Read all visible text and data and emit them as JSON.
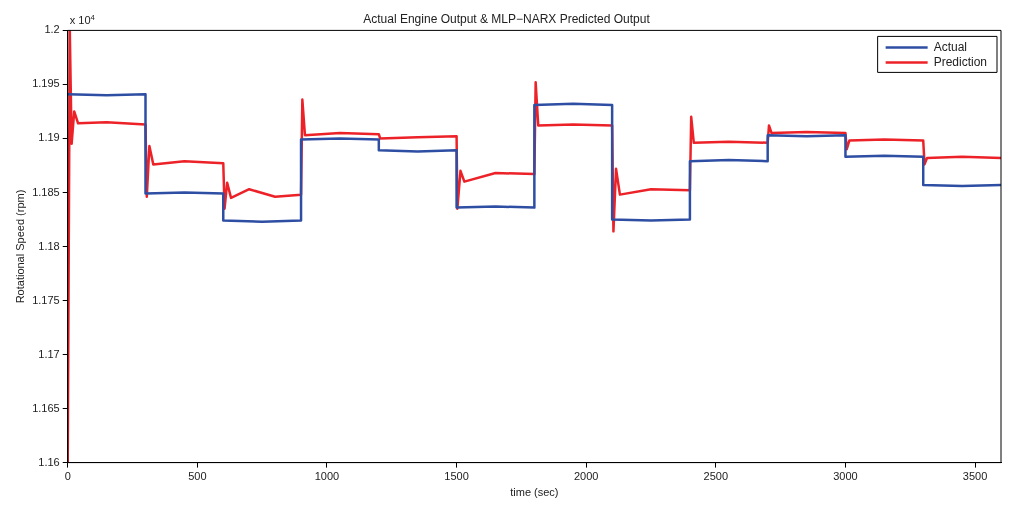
{
  "chart_data": {
    "type": "line",
    "title": "Actual Engine Output & MLP−NARX Predicted Output",
    "xlabel": "time (sec)",
    "ylabel": "Rotational Speed (rpm)",
    "annotations": [
      "x 10$^{4}$"
    ],
    "xlim": [
      0,
      3600
    ],
    "xticks": [
      0,
      500,
      1000,
      1500,
      2000,
      2500,
      3000,
      3500
    ],
    "ylim": [
      1.16,
      1.2
    ],
    "yticks": [
      1.16,
      1.165,
      1.17,
      1.175,
      1.18,
      1.185,
      1.19,
      1.195,
      1.2
    ],
    "grid": false,
    "legend": "top right",
    "marker": "none",
    "line_style": "solid",
    "series": [
      {
        "name": "Actual",
        "color": "#2e4ea3",
        "x": [
          0,
          150,
          300,
          300,
          450,
          600,
          600,
          750,
          900,
          900,
          1050,
          1200,
          1200,
          1350,
          1500,
          1500,
          1650,
          1800,
          1800,
          1950,
          2100,
          2100,
          2250,
          2400,
          2400,
          2550,
          2700,
          2700,
          2850,
          3000,
          3000,
          3150,
          3300,
          3300,
          3450,
          3600
        ],
        "values": [
          1.1941,
          1.194,
          1.1941,
          1.1849,
          1.185,
          1.1849,
          1.1824,
          1.1823,
          1.1824,
          1.1899,
          1.19,
          1.1899,
          1.1889,
          1.1888,
          1.1889,
          1.1836,
          1.1837,
          1.1836,
          1.1931,
          1.1932,
          1.1931,
          1.1825,
          1.1824,
          1.1825,
          1.1879,
          1.188,
          1.1879,
          1.1903,
          1.1902,
          1.1903,
          1.1883,
          1.1884,
          1.1883,
          1.1857,
          1.1856,
          1.1857
        ]
      },
      {
        "name": "Prediction",
        "color": "#ec2228",
        "x": [
          0,
          8,
          15,
          25,
          40,
          150,
          300,
          305,
          315,
          330,
          450,
          600,
          605,
          615,
          630,
          700,
          800,
          900,
          905,
          915,
          1050,
          1200,
          1205,
          1350,
          1500,
          1503,
          1515,
          1530,
          1650,
          1800,
          1805,
          1815,
          1950,
          2100,
          2105,
          2115,
          2130,
          2250,
          2400,
          2405,
          2415,
          2550,
          2700,
          2705,
          2715,
          2850,
          3000,
          3005,
          3015,
          3150,
          3300,
          3305,
          3315,
          3450,
          3600
        ],
        "values": [
          1.16,
          1.2,
          1.1895,
          1.1925,
          1.1914,
          1.1915,
          1.1913,
          1.1846,
          1.1893,
          1.1876,
          1.1879,
          1.1877,
          1.1835,
          1.1859,
          1.1845,
          1.1853,
          1.1846,
          1.1848,
          1.1936,
          1.1903,
          1.1905,
          1.1904,
          1.19,
          1.1901,
          1.1902,
          1.1835,
          1.187,
          1.186,
          1.1868,
          1.1867,
          1.1952,
          1.1912,
          1.1913,
          1.1912,
          1.1814,
          1.1872,
          1.1848,
          1.1853,
          1.1852,
          1.192,
          1.1896,
          1.1897,
          1.1896,
          1.1912,
          1.1905,
          1.1906,
          1.1905,
          1.189,
          1.1898,
          1.1899,
          1.1898,
          1.1876,
          1.1882,
          1.1883,
          1.1882
        ]
      }
    ]
  }
}
